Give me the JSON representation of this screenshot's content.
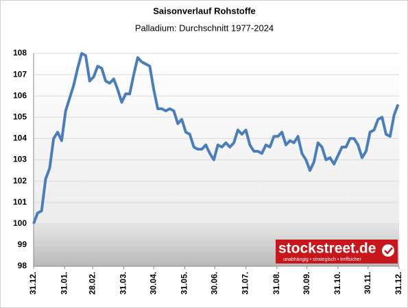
{
  "chart_data": {
    "type": "line",
    "title": "Saisonverlauf Rohstoffe",
    "subtitle": "Palladium: Durchschnitt 1977-2024",
    "logo": {
      "name": "stockstreet.de",
      "tagline": "unabhängig • strategisch • treffsicher"
    },
    "xlim": [
      0,
      365
    ],
    "xticks": [
      {
        "value": 0,
        "label": "31.12."
      },
      {
        "value": 31,
        "label": "31.01."
      },
      {
        "value": 59,
        "label": "28.02."
      },
      {
        "value": 90,
        "label": "31.03."
      },
      {
        "value": 120,
        "label": "30.04."
      },
      {
        "value": 151,
        "label": "31.05."
      },
      {
        "value": 181,
        "label": "30.06."
      },
      {
        "value": 212,
        "label": "31.07."
      },
      {
        "value": 243,
        "label": "31.08."
      },
      {
        "value": 273,
        "label": "30.09."
      },
      {
        "value": 304,
        "label": "31.10."
      },
      {
        "value": 334,
        "label": "30.11."
      },
      {
        "value": 365,
        "label": "31.12."
      }
    ],
    "ylim": [
      98,
      108
    ],
    "yticks": [
      98,
      99,
      100,
      101,
      102,
      103,
      104,
      105,
      106,
      107,
      108
    ],
    "grid": true,
    "baseline": 100,
    "series": [
      {
        "color": "#4a7ebb",
        "x": [
          0,
          4,
          8,
          12,
          16,
          20,
          24,
          28,
          32,
          36,
          40,
          44,
          48,
          52,
          56,
          60,
          64,
          68,
          72,
          76,
          80,
          84,
          88,
          92,
          96,
          100,
          104,
          108,
          112,
          116,
          120,
          124,
          128,
          132,
          136,
          140,
          144,
          148,
          152,
          156,
          160,
          164,
          168,
          172,
          176,
          180,
          184,
          188,
          192,
          196,
          200,
          204,
          208,
          212,
          216,
          220,
          224,
          228,
          232,
          236,
          240,
          244,
          248,
          252,
          256,
          260,
          264,
          268,
          272,
          276,
          280,
          284,
          288,
          292,
          296,
          300,
          304,
          308,
          312,
          316,
          320,
          324,
          328,
          332,
          336,
          340,
          344,
          348,
          352,
          356,
          360,
          364
        ],
        "values": [
          100,
          100.5,
          100.6,
          102.1,
          102.6,
          104,
          104.3,
          103.9,
          105.3,
          105.9,
          106.5,
          107.3,
          108,
          107.9,
          106.7,
          106.9,
          107.4,
          107.3,
          106.7,
          106.6,
          106.8,
          106.3,
          105.7,
          106.1,
          106.1,
          107,
          107.8,
          107.6,
          107.5,
          107.4,
          106.3,
          105.4,
          105.4,
          105.3,
          105.4,
          105.3,
          104.7,
          104.9,
          104.3,
          104.2,
          103.6,
          103.5,
          103.5,
          103.7,
          103.3,
          103,
          103.7,
          103.6,
          103.8,
          103.6,
          103.8,
          104.4,
          104.2,
          104.4,
          103.7,
          103.4,
          103.4,
          103.3,
          103.7,
          103.6,
          104.1,
          104.1,
          104.3,
          103.7,
          103.9,
          103.8,
          104.1,
          103.3,
          103,
          102.5,
          102.9,
          103.8,
          103.6,
          103,
          103.1,
          102.8,
          103.2,
          103.6,
          103.6,
          104,
          104,
          103.7,
          103.1,
          103.4,
          104.3,
          104.4,
          104.9,
          105,
          104.2,
          104.1,
          105.1,
          105.6
        ]
      }
    ]
  }
}
